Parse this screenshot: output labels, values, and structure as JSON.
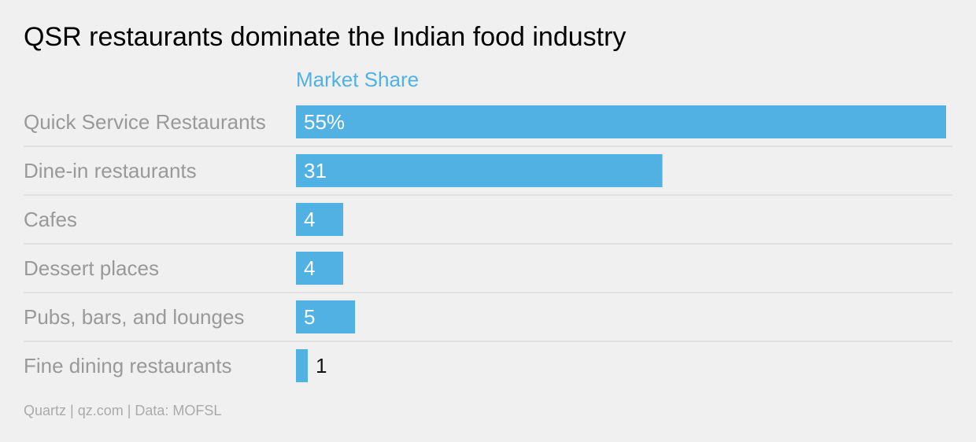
{
  "chart_data": {
    "type": "bar",
    "orientation": "horizontal",
    "title": "QSR restaurants dominate the Indian food industry",
    "series_header": "Market Share",
    "categories": [
      "Quick Service Restaurants",
      "Dine-in restaurants",
      "Cafes",
      "Dessert places",
      "Pubs, bars, and lounges",
      "Fine dining restaurants"
    ],
    "values": [
      55,
      31,
      4,
      4,
      5,
      1
    ],
    "value_labels": [
      "55%",
      "31",
      "4",
      "4",
      "5",
      "1"
    ],
    "xlim": [
      0,
      55
    ],
    "grid": false,
    "row_separators": true,
    "source": "Quartz | qz.com | Data: MOFSL"
  },
  "colors": {
    "bar": "#52b1e3",
    "header": "#52b1e3",
    "title": "#000000",
    "category_label": "#999999",
    "value_label_inside": "#ffffff",
    "value_label_outside": "#111111",
    "separator": "#dedede",
    "source": "#aaaaaa",
    "background": "#f0f0f0"
  }
}
